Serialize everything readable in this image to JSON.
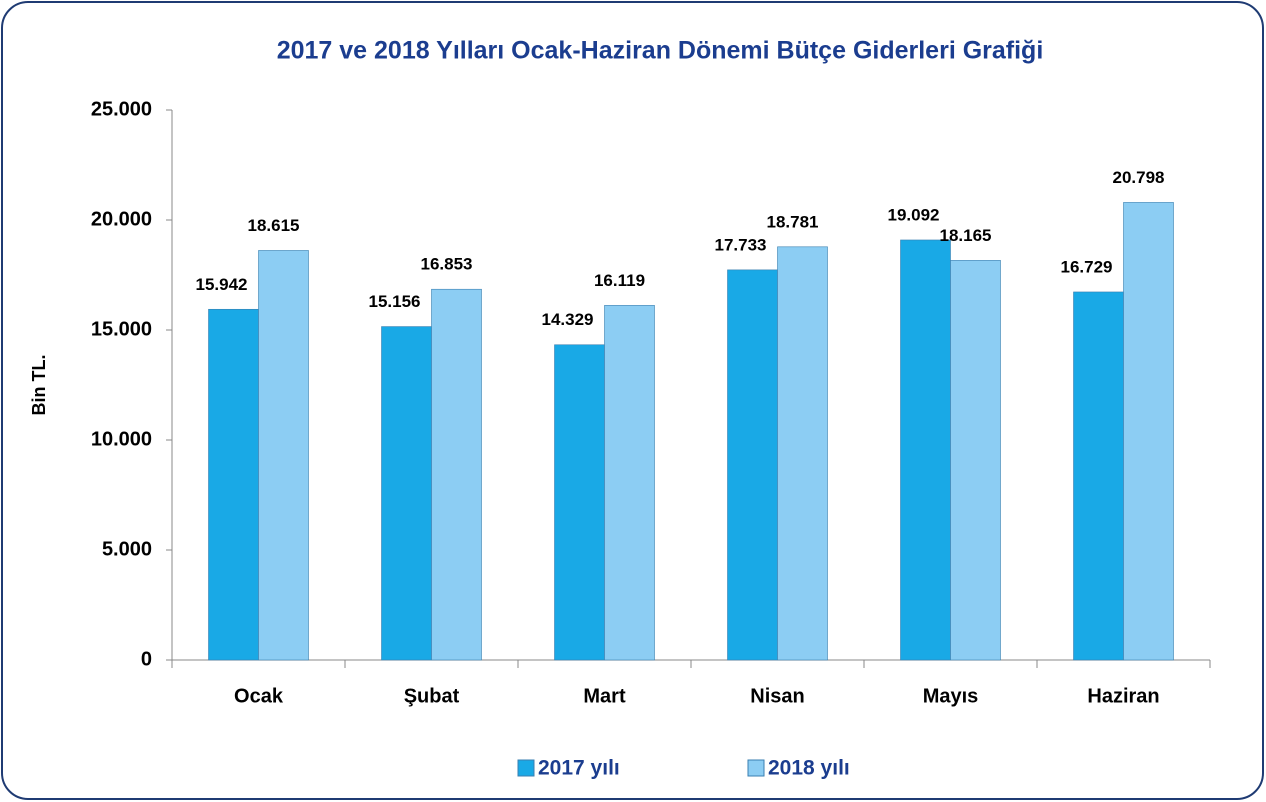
{
  "chart_data": {
    "type": "bar",
    "title": "2017 ve 2018 Yılları Ocak-Haziran Dönemi Bütçe Giderleri Grafiği",
    "y_label": "Bin TL.",
    "categories": [
      "Ocak",
      "Şubat",
      "Mart",
      "Nisan",
      "Mayıs",
      "Haziran"
    ],
    "series": [
      {
        "name": "2017 yılı",
        "color": "#19a9e6",
        "values": [
          15942,
          15156,
          14329,
          17733,
          19092,
          16729
        ],
        "value_labels": [
          "15.942",
          "15.156",
          "14.329",
          "17.733",
          "19.092",
          "16.729"
        ]
      },
      {
        "name": "2018 yılı",
        "color": "#8ccdf3",
        "values": [
          18615,
          16853,
          16119,
          18781,
          18165,
          20798
        ],
        "value_labels": [
          "18.615",
          "16.853",
          "16.119",
          "18.781",
          "18.165",
          "20.798"
        ]
      }
    ],
    "ylim": [
      0,
      25000
    ],
    "yticks": [
      0,
      {
        "value": 5000,
        "label": "5.000"
      },
      {
        "value": 10000,
        "label": "10.000"
      },
      {
        "value": 15000,
        "label": "15.000"
      },
      {
        "value": 20000,
        "label": "20.000"
      },
      {
        "value": 25000,
        "label": "25.000"
      }
    ],
    "legend": "bottom"
  }
}
